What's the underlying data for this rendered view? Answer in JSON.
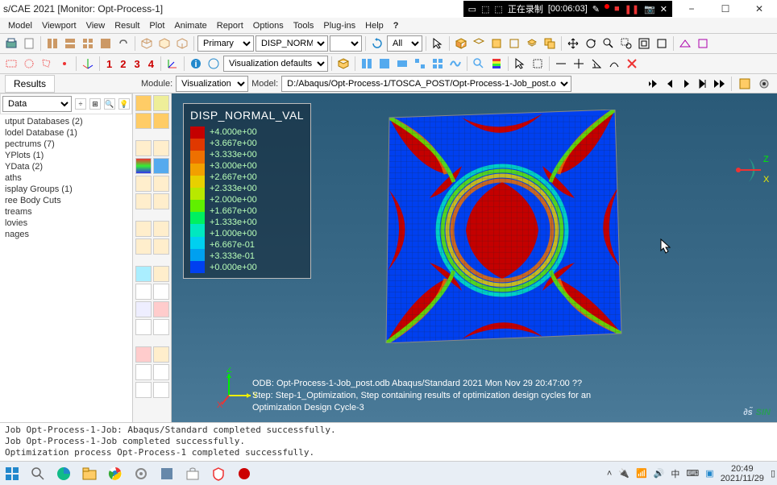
{
  "window": {
    "title": "s/CAE 2021 [Monitor: Opt-Process-1]",
    "minimize": "−",
    "maximize": "☐",
    "close": "✕"
  },
  "recorder": {
    "status": "正在录制",
    "time": "[00:06:03]"
  },
  "menu": [
    "Model",
    "Viewport",
    "View",
    "Result",
    "Plot",
    "Animate",
    "Report",
    "Options",
    "Tools",
    "Plug-ins",
    "Help",
    "?"
  ],
  "toolbar1": {
    "primary_label": "Primary",
    "field_label": "DISP_NORMA",
    "all_label": "All"
  },
  "toolbar2": {
    "nums": [
      "1",
      "2",
      "3",
      "4"
    ],
    "vis_label": "Visualization defaults"
  },
  "context": {
    "module_label": "Module:",
    "module_value": "Visualization",
    "model_label": "Model:",
    "model_value": "D:/Abaqus/Opt-Process-1/TOSCA_POST/Opt-Process-1-Job_post.odb"
  },
  "results": {
    "tab": "Results",
    "header": "Data",
    "items": [
      "utput Databases (2)",
      "lodel Database (1)",
      "pectrums (7)",
      "YPlots (1)",
      "YData (2)",
      "aths",
      "isplay Groups (1)",
      "ree Body Cuts",
      "treams",
      "lovies",
      "nages"
    ]
  },
  "legend": {
    "title": "DISP_NORMAL_VAL",
    "values": [
      "+4.000e+00",
      "+3.667e+00",
      "+3.333e+00",
      "+3.000e+00",
      "+2.667e+00",
      "+2.333e+00",
      "+2.000e+00",
      "+1.667e+00",
      "+1.333e+00",
      "+1.000e+00",
      "+6.667e-01",
      "+3.333e-01",
      "+0.000e+00"
    ],
    "colors": [
      "#c40000",
      "#e03800",
      "#ee7000",
      "#f2a000",
      "#e8d000",
      "#b8e800",
      "#60f000",
      "#00f060",
      "#00e8c0",
      "#00d0f0",
      "#00a0f0",
      "#0040f0"
    ]
  },
  "info": {
    "odb": "ODB: Opt-Process-1-Job_post.odb     Abaqus/Standard 2021     Mon Nov 29 20:47:00 ??",
    "step": "Step: Step-1_Optimization, Step containing results of optimization design cycles for an",
    "frame": "Optimization Design Cycle-3"
  },
  "axes": [
    "X",
    "Y",
    "Z"
  ],
  "logo": "SIN",
  "messages": [
    "Job Opt-Process-1-Job: Abaqus/Standard completed successfully.",
    "Job Opt-Process-1-Job completed successfully.",
    "Optimization process Opt-Process-1 completed successfully."
  ],
  "taskbar": {
    "time": "20:49",
    "date": "2021/11/29"
  }
}
